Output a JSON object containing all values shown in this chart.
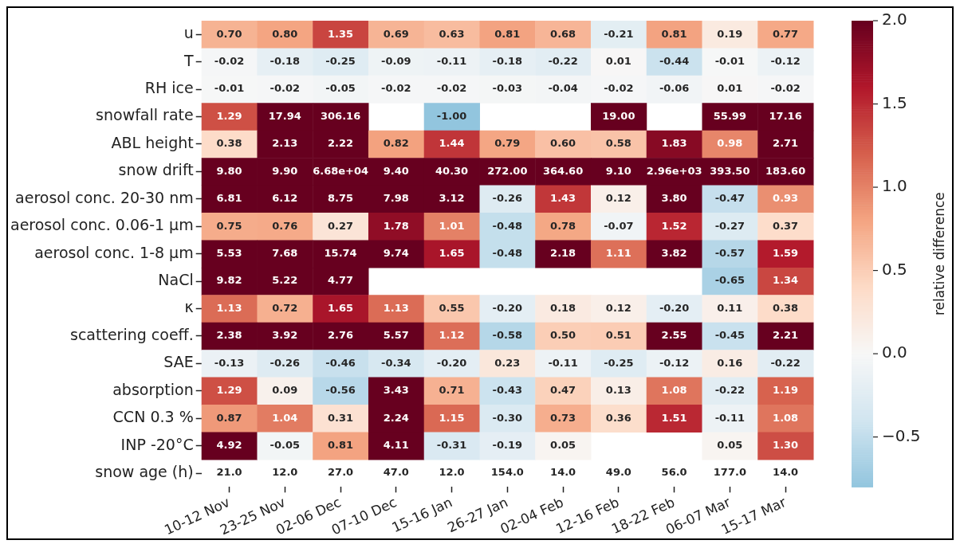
{
  "chart_data": {
    "type": "heatmap",
    "clabel": "relative difference",
    "clim": [
      -0.8,
      2.0
    ],
    "cticks": [
      {
        "value": -0.5,
        "label": "−0.5"
      },
      {
        "value": 0.0,
        "label": "0.0"
      },
      {
        "value": 0.5,
        "label": "0.5"
      },
      {
        "value": 1.0,
        "label": "1.0"
      },
      {
        "value": 1.5,
        "label": "1.5"
      },
      {
        "value": 2.0,
        "label": "2.0"
      }
    ],
    "categories": [
      "10-12 Nov",
      "23-25 Nov",
      "02-06 Dec",
      "07-10 Dec",
      "15-16 Jan",
      "26-27 Jan",
      "02-04 Feb",
      "12-16 Feb",
      "18-22 Feb",
      "06-07 Mar",
      "15-17 Mar"
    ],
    "y_categories": [
      "u",
      "T",
      "RH ice",
      "snowfall rate",
      "ABL height",
      "snow drift",
      "aerosol conc. 20-30 nm",
      "aerosol conc. 0.06-1 μm",
      "aerosol conc. 1-8 μm",
      "NaCl",
      "κ",
      "scattering coeff.",
      "SAE",
      "absorption",
      "CCN 0.3 %",
      "INP -20°C",
      "snow age (h)"
    ],
    "cells": [
      [
        0.7,
        0.8,
        1.35,
        0.69,
        0.63,
        0.81,
        0.68,
        -0.21,
        0.81,
        0.19,
        0.77
      ],
      [
        -0.02,
        -0.18,
        -0.25,
        -0.09,
        -0.11,
        -0.18,
        -0.22,
        0.01,
        -0.44,
        -0.01,
        -0.12
      ],
      [
        -0.01,
        -0.02,
        -0.05,
        -0.02,
        -0.02,
        -0.03,
        -0.04,
        -0.02,
        -0.06,
        0.01,
        -0.02
      ],
      [
        1.29,
        17.94,
        306.16,
        null,
        -1.0,
        null,
        null,
        19.0,
        null,
        55.99,
        17.16
      ],
      [
        0.38,
        2.13,
        2.22,
        0.82,
        1.44,
        0.79,
        0.6,
        0.58,
        1.83,
        0.98,
        2.71
      ],
      [
        9.8,
        9.9,
        66800,
        9.4,
        40.3,
        272.0,
        364.6,
        9.1,
        2960,
        393.5,
        183.6
      ],
      [
        6.81,
        6.12,
        8.75,
        7.98,
        3.12,
        -0.26,
        1.43,
        0.12,
        3.8,
        -0.47,
        0.93
      ],
      [
        0.75,
        0.76,
        0.27,
        1.78,
        1.01,
        -0.48,
        0.78,
        -0.07,
        1.52,
        -0.27,
        0.37
      ],
      [
        5.53,
        7.68,
        15.74,
        9.74,
        1.65,
        -0.48,
        2.18,
        1.11,
        3.82,
        -0.57,
        1.59
      ],
      [
        9.82,
        5.22,
        4.77,
        null,
        null,
        null,
        null,
        null,
        null,
        -0.65,
        1.34
      ],
      [
        1.13,
        0.72,
        1.65,
        1.13,
        0.55,
        -0.2,
        0.18,
        0.12,
        -0.2,
        0.11,
        0.38
      ],
      [
        2.38,
        3.92,
        2.76,
        5.57,
        1.12,
        -0.58,
        0.5,
        0.51,
        2.55,
        -0.45,
        2.21
      ],
      [
        -0.13,
        -0.26,
        -0.46,
        -0.34,
        -0.2,
        0.23,
        -0.11,
        -0.25,
        -0.12,
        0.16,
        -0.22
      ],
      [
        1.29,
        0.09,
        -0.56,
        3.43,
        0.71,
        -0.43,
        0.47,
        0.13,
        1.08,
        -0.22,
        1.19
      ],
      [
        0.87,
        1.04,
        0.31,
        2.24,
        1.15,
        -0.3,
        0.73,
        0.36,
        1.51,
        -0.11,
        1.08
      ],
      [
        4.92,
        -0.05,
        0.81,
        4.11,
        -0.31,
        -0.19,
        0.05,
        null,
        null,
        0.05,
        1.3
      ],
      [
        null,
        null,
        null,
        null,
        null,
        null,
        null,
        null,
        null,
        null,
        null
      ]
    ],
    "cell_labels": [
      [
        "0.70",
        "0.80",
        "1.35",
        "0.69",
        "0.63",
        "0.81",
        "0.68",
        "-0.21",
        "0.81",
        "0.19",
        "0.77"
      ],
      [
        "-0.02",
        "-0.18",
        "-0.25",
        "-0.09",
        "-0.11",
        "-0.18",
        "-0.22",
        "0.01",
        "-0.44",
        "-0.01",
        "-0.12"
      ],
      [
        "-0.01",
        "-0.02",
        "-0.05",
        "-0.02",
        "-0.02",
        "-0.03",
        "-0.04",
        "-0.02",
        "-0.06",
        "0.01",
        "-0.02"
      ],
      [
        "1.29",
        "17.94",
        "306.16",
        null,
        "-1.00",
        null,
        null,
        "19.00",
        null,
        "55.99",
        "17.16"
      ],
      [
        "0.38",
        "2.13",
        "2.22",
        "0.82",
        "1.44",
        "0.79",
        "0.60",
        "0.58",
        "1.83",
        "0.98",
        "2.71"
      ],
      [
        "9.80",
        "9.90",
        "6.68e+04",
        "9.40",
        "40.30",
        "272.00",
        "364.60",
        "9.10",
        "2.96e+03",
        "393.50",
        "183.60"
      ],
      [
        "6.81",
        "6.12",
        "8.75",
        "7.98",
        "3.12",
        "-0.26",
        "1.43",
        "0.12",
        "3.80",
        "-0.47",
        "0.93"
      ],
      [
        "0.75",
        "0.76",
        "0.27",
        "1.78",
        "1.01",
        "-0.48",
        "0.78",
        "-0.07",
        "1.52",
        "-0.27",
        "0.37"
      ],
      [
        "5.53",
        "7.68",
        "15.74",
        "9.74",
        "1.65",
        "-0.48",
        "2.18",
        "1.11",
        "3.82",
        "-0.57",
        "1.59"
      ],
      [
        "9.82",
        "5.22",
        "4.77",
        null,
        null,
        null,
        null,
        null,
        null,
        "-0.65",
        "1.34"
      ],
      [
        "1.13",
        "0.72",
        "1.65",
        "1.13",
        "0.55",
        "-0.20",
        "0.18",
        "0.12",
        "-0.20",
        "0.11",
        "0.38"
      ],
      [
        "2.38",
        "3.92",
        "2.76",
        "5.57",
        "1.12",
        "-0.58",
        "0.50",
        "0.51",
        "2.55",
        "-0.45",
        "2.21"
      ],
      [
        "-0.13",
        "-0.26",
        "-0.46",
        "-0.34",
        "-0.20",
        "0.23",
        "-0.11",
        "-0.25",
        "-0.12",
        "0.16",
        "-0.22"
      ],
      [
        "1.29",
        "0.09",
        "-0.56",
        "3.43",
        "0.71",
        "-0.43",
        "0.47",
        "0.13",
        "1.08",
        "-0.22",
        "1.19"
      ],
      [
        "0.87",
        "1.04",
        "0.31",
        "2.24",
        "1.15",
        "-0.30",
        "0.73",
        "0.36",
        "1.51",
        "-0.11",
        "1.08"
      ],
      [
        "4.92",
        "-0.05",
        "0.81",
        "4.11",
        "-0.31",
        "-0.19",
        "0.05",
        null,
        null,
        "0.05",
        "1.30"
      ],
      [
        "21.0",
        "12.0",
        "27.0",
        "47.0",
        "12.0",
        "154.0",
        "14.0",
        "49.0",
        "56.0",
        "177.0",
        "14.0"
      ]
    ]
  }
}
